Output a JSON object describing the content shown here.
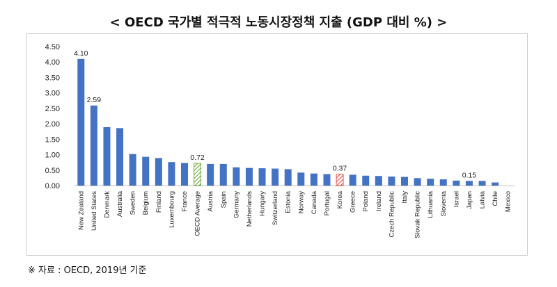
{
  "header": {
    "title": "< OECD 국가별 적극적 노동시장정책 지출 (GDP 대비 %) >"
  },
  "footer": {
    "source": "※ 자료 : OECD, 2019년 기준"
  },
  "colors": {
    "bar": "#4472c4",
    "oecd_average": "#70ad47",
    "korea": "#e8564a"
  },
  "chart_data": {
    "type": "bar",
    "title": "< OECD 국가별 적극적 노동시장정책 지출 (GDP 대비 %) >",
    "ylim": [
      0,
      4.5
    ],
    "yticks": [
      "0.00",
      "0.50",
      "1.00",
      "1.50",
      "2.00",
      "2.50",
      "3.00",
      "3.50",
      "4.00",
      "4.50"
    ],
    "grid": false,
    "categories": [
      "New Zealand",
      "United States",
      "Denmark",
      "Australia",
      "Sweden",
      "Belgium",
      "Finland",
      "Luxembourg",
      "France",
      "OECD Average",
      "Austria",
      "Spain",
      "Germany",
      "Netherlands",
      "Hungary",
      "Switzerland",
      "Estonia",
      "Norway",
      "Canada",
      "Portugal",
      "Korea",
      "Greece",
      "Poland",
      "Ireland",
      "Czech Republic",
      "Italy",
      "Slovak Republic",
      "Lithuania",
      "Slovenia",
      "Israel",
      "Japan",
      "Latvia",
      "Chile",
      "Mexico"
    ],
    "values": [
      4.1,
      2.59,
      1.89,
      1.86,
      1.02,
      0.93,
      0.89,
      0.76,
      0.73,
      0.72,
      0.7,
      0.7,
      0.59,
      0.57,
      0.56,
      0.55,
      0.53,
      0.42,
      0.39,
      0.37,
      0.37,
      0.35,
      0.32,
      0.31,
      0.29,
      0.28,
      0.24,
      0.22,
      0.2,
      0.16,
      0.15,
      0.15,
      0.1,
      0.0
    ],
    "data_labels": [
      {
        "category": "New Zealand",
        "text": "4.10"
      },
      {
        "category": "United States",
        "text": "2.59"
      },
      {
        "category": "OECD Average",
        "text": "0.72"
      },
      {
        "category": "Korea",
        "text": "0.37"
      },
      {
        "category": "Japan",
        "text": "0.15"
      }
    ],
    "highlights": [
      {
        "category": "OECD Average",
        "style": "hatched-green"
      },
      {
        "category": "Korea",
        "style": "hatched-red"
      }
    ]
  }
}
